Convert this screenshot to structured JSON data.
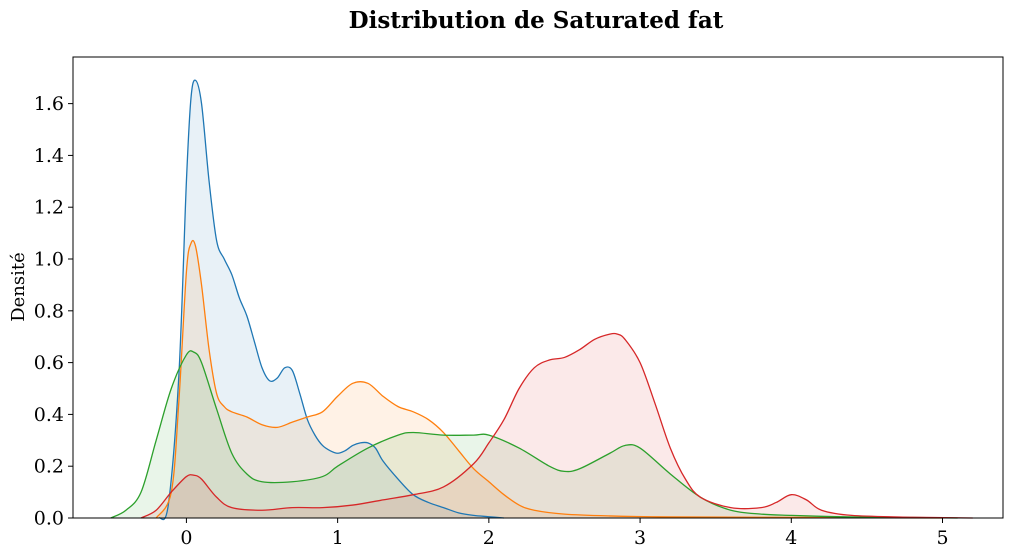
{
  "chart_data": {
    "type": "area",
    "title": "Distribution de Saturated fat",
    "xlabel": "",
    "ylabel": "Densité",
    "xlim": [
      -0.75,
      5.4
    ],
    "ylim": [
      0,
      1.78
    ],
    "xticks": [
      0,
      1,
      2,
      3,
      4,
      5
    ],
    "yticks": [
      0.0,
      0.2,
      0.4,
      0.6,
      0.8,
      1.0,
      1.2,
      1.4,
      1.6
    ],
    "grid": false,
    "legend": "none",
    "fill_opacity": 0.1,
    "series": [
      {
        "color": "#1f77b4",
        "x": [
          -0.18,
          -0.12,
          -0.05,
          0.0,
          0.03,
          0.06,
          0.1,
          0.15,
          0.2,
          0.25,
          0.3,
          0.35,
          0.4,
          0.45,
          0.5,
          0.55,
          0.6,
          0.65,
          0.7,
          0.75,
          0.8,
          0.85,
          0.9,
          0.95,
          1.0,
          1.05,
          1.1,
          1.15,
          1.2,
          1.25,
          1.3,
          1.4,
          1.5,
          1.6,
          1.7,
          1.8,
          1.9,
          2.0,
          2.1
        ],
        "y": [
          0.0,
          0.05,
          0.55,
          1.3,
          1.62,
          1.69,
          1.6,
          1.3,
          1.07,
          1.0,
          0.94,
          0.85,
          0.78,
          0.68,
          0.58,
          0.53,
          0.54,
          0.58,
          0.57,
          0.48,
          0.38,
          0.32,
          0.28,
          0.26,
          0.25,
          0.26,
          0.28,
          0.29,
          0.29,
          0.27,
          0.22,
          0.15,
          0.09,
          0.06,
          0.04,
          0.02,
          0.01,
          0.005,
          0.0
        ]
      },
      {
        "color": "#ff7f0e",
        "x": [
          -0.2,
          -0.1,
          -0.05,
          0.0,
          0.03,
          0.06,
          0.1,
          0.15,
          0.2,
          0.25,
          0.3,
          0.4,
          0.5,
          0.6,
          0.7,
          0.8,
          0.9,
          1.0,
          1.1,
          1.2,
          1.3,
          1.4,
          1.5,
          1.6,
          1.7,
          1.8,
          1.9,
          2.0,
          2.1,
          2.2,
          2.3,
          2.5,
          2.8,
          3.2,
          3.8,
          4.5,
          5.0
        ],
        "y": [
          0.0,
          0.1,
          0.45,
          0.95,
          1.06,
          1.05,
          0.9,
          0.65,
          0.48,
          0.43,
          0.41,
          0.39,
          0.36,
          0.35,
          0.37,
          0.39,
          0.41,
          0.47,
          0.52,
          0.52,
          0.47,
          0.43,
          0.41,
          0.38,
          0.33,
          0.26,
          0.19,
          0.14,
          0.09,
          0.05,
          0.03,
          0.015,
          0.008,
          0.004,
          0.003,
          0.001,
          0.0
        ]
      },
      {
        "color": "#2ca02c",
        "x": [
          -0.5,
          -0.4,
          -0.3,
          -0.2,
          -0.1,
          0.0,
          0.05,
          0.1,
          0.2,
          0.3,
          0.4,
          0.5,
          0.7,
          0.9,
          1.0,
          1.2,
          1.4,
          1.5,
          1.7,
          1.9,
          2.0,
          2.2,
          2.4,
          2.5,
          2.6,
          2.8,
          2.9,
          3.0,
          3.2,
          3.4,
          3.6,
          3.8,
          4.0,
          4.3,
          4.6,
          5.1
        ],
        "y": [
          0.0,
          0.03,
          0.1,
          0.3,
          0.5,
          0.63,
          0.64,
          0.6,
          0.42,
          0.25,
          0.17,
          0.14,
          0.14,
          0.16,
          0.2,
          0.27,
          0.32,
          0.33,
          0.32,
          0.32,
          0.32,
          0.27,
          0.2,
          0.18,
          0.19,
          0.25,
          0.28,
          0.27,
          0.17,
          0.08,
          0.03,
          0.015,
          0.01,
          0.005,
          0.003,
          0.0
        ]
      },
      {
        "color": "#d62728",
        "x": [
          -0.3,
          -0.2,
          -0.1,
          0.0,
          0.05,
          0.1,
          0.2,
          0.3,
          0.5,
          0.7,
          0.9,
          1.1,
          1.3,
          1.5,
          1.7,
          1.9,
          2.0,
          2.1,
          2.2,
          2.3,
          2.4,
          2.5,
          2.6,
          2.7,
          2.8,
          2.85,
          2.9,
          3.0,
          3.1,
          3.2,
          3.3,
          3.4,
          3.6,
          3.8,
          3.9,
          4.0,
          4.1,
          4.2,
          4.4,
          4.8,
          5.2
        ],
        "y": [
          0.0,
          0.03,
          0.1,
          0.16,
          0.165,
          0.15,
          0.08,
          0.04,
          0.03,
          0.04,
          0.04,
          0.05,
          0.07,
          0.09,
          0.12,
          0.21,
          0.29,
          0.38,
          0.5,
          0.58,
          0.61,
          0.62,
          0.65,
          0.69,
          0.71,
          0.71,
          0.69,
          0.6,
          0.44,
          0.27,
          0.15,
          0.08,
          0.04,
          0.04,
          0.06,
          0.09,
          0.07,
          0.03,
          0.01,
          0.003,
          0.0
        ]
      }
    ]
  }
}
